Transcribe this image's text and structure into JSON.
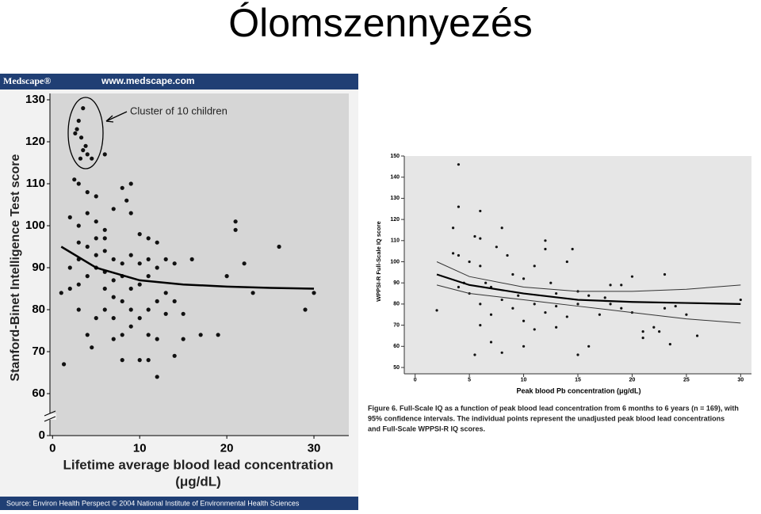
{
  "title": "Ólomszennyezés",
  "chart_data": [
    {
      "type": "scatter",
      "header_logo": "Medscape®",
      "header_url": "www.medscape.com",
      "source": "Source: Environ Health Perspect © 2004 National Institute of Environmental Health Sciences",
      "annotation": "Cluster of 10 children",
      "ylabel": "Stanford-Binet Intelligence Test score",
      "xlabel": [
        "Lifetime average blood lead concentration",
        "(μg/dL)"
      ],
      "xlim": [
        -0.3,
        34
      ],
      "xticks": [
        0,
        10,
        20,
        30
      ],
      "ylim": [
        50,
        130
      ],
      "yticks": [
        0,
        60,
        70,
        80,
        90,
        100,
        110,
        120,
        130
      ],
      "axis_break": true,
      "series": [
        {
          "style": "points",
          "color": "#111111",
          "x": [
            3.5,
            3,
            2.8,
            3.3,
            2.6,
            3.8,
            3.5,
            4,
            3.2,
            4.5,
            6,
            1,
            1.3,
            2.5,
            3,
            4,
            5,
            2,
            3,
            4,
            5,
            6,
            7,
            8,
            9,
            8.5,
            9,
            10,
            11,
            12,
            6,
            7,
            5,
            4,
            3,
            2,
            6,
            7,
            8,
            9,
            10,
            11,
            12,
            13,
            14,
            13,
            12,
            11,
            10,
            9,
            8,
            5,
            4,
            4.5,
            7,
            8,
            10,
            11,
            12,
            14,
            15,
            15,
            16,
            17,
            21,
            21,
            20,
            19,
            22,
            23,
            26,
            29,
            30,
            4,
            5,
            6,
            7,
            8,
            9,
            10,
            11,
            3,
            2,
            3,
            6,
            7,
            13,
            14,
            12,
            11,
            9,
            8,
            6,
            5,
            3
          ],
          "values": [
            128,
            125,
            123,
            121,
            122,
            119,
            118,
            117,
            116,
            116,
            117,
            84,
            67,
            111,
            110,
            108,
            107,
            102,
            100,
            103,
            101,
            99,
            104,
            109,
            110,
            106,
            103,
            98,
            97,
            96,
            94,
            92,
            90,
            88,
            86,
            85,
            85,
            83,
            82,
            80,
            86,
            88,
            90,
            92,
            91,
            84,
            82,
            80,
            78,
            76,
            74,
            78,
            74,
            71,
            73,
            68,
            68,
            68,
            64,
            69,
            73,
            79,
            92,
            74,
            101,
            99,
            88,
            74,
            91,
            84,
            95,
            80,
            84,
            95,
            93,
            89,
            87,
            91,
            93,
            91,
            92,
            92,
            90,
            80,
            80,
            78,
            79,
            82,
            73,
            74,
            85,
            88,
            97,
            97,
            96
          ]
        },
        {
          "style": "line",
          "color": "#000000",
          "width": 2.5,
          "x": [
            1,
            5,
            10,
            15,
            20,
            25,
            30
          ],
          "values": [
            95,
            90,
            87,
            86,
            85.5,
            85.2,
            85
          ]
        }
      ]
    },
    {
      "type": "scatter",
      "ylabel": "WPPSI-R Full-Scale IQ score",
      "xlabel": [
        "Peak blood Pb concentration (μg/dL)"
      ],
      "caption": [
        "Figure 6. Full-Scale IQ as a function of peak blood lead concentration from 6 months to 6 years (n = 169), with",
        "95% confidence intervals. The individual points represent the unadjusted peak blood lead concentrations",
        "and Full-Scale WPPSI-R IQ scores."
      ],
      "xlim": [
        -1,
        31
      ],
      "xticks": [
        0,
        5,
        10,
        15,
        20,
        25,
        30
      ],
      "ylim": [
        47,
        150
      ],
      "yticks": [
        50,
        60,
        70,
        80,
        90,
        100,
        110,
        120,
        130,
        140,
        150
      ],
      "series": [
        {
          "style": "points",
          "color": "#111111",
          "x": [
            2,
            3.5,
            3.5,
            4,
            4,
            4,
            4.5,
            5,
            5.5,
            6,
            6,
            5.5,
            6,
            6.5,
            7,
            7.5,
            8,
            8.5,
            9,
            9.5,
            10,
            10,
            11,
            11,
            12,
            12,
            12.5,
            13,
            13,
            14,
            14,
            14.5,
            15,
            15,
            16,
            17,
            17.5,
            18,
            18,
            19,
            20,
            20,
            21,
            21,
            22,
            22.5,
            23,
            23,
            23.5,
            24,
            25,
            26,
            30,
            6,
            7,
            8,
            9,
            5,
            4,
            6,
            7,
            8,
            10,
            11,
            12,
            13,
            15,
            16,
            19
          ],
          "values": [
            77,
            104,
            116,
            146,
            126,
            103,
            90,
            100,
            112,
            124,
            111,
            56,
            98,
            90,
            88,
            107,
            116,
            103,
            94,
            84,
            60,
            92,
            98,
            80,
            110,
            106,
            90,
            85,
            69,
            74,
            100,
            106,
            80,
            56,
            60,
            75,
            83,
            89,
            80,
            89,
            93,
            76,
            67,
            64,
            69,
            67,
            94,
            78,
            61,
            79,
            75,
            65,
            82,
            80,
            75,
            82,
            78,
            85,
            88,
            70,
            62,
            57,
            72,
            68,
            76,
            79,
            86,
            84,
            78
          ]
        },
        {
          "style": "line",
          "color": "#000000",
          "width": 2.2,
          "x": [
            2,
            5,
            10,
            15,
            20,
            25,
            30
          ],
          "values": [
            94,
            89,
            85,
            82,
            81,
            80.5,
            80
          ]
        },
        {
          "style": "line",
          "color": "#333333",
          "width": 1,
          "x": [
            2,
            5,
            10,
            15,
            20,
            25,
            30
          ],
          "values": [
            100,
            93,
            88,
            86,
            86,
            87,
            89
          ]
        },
        {
          "style": "line",
          "color": "#333333",
          "width": 1,
          "x": [
            2,
            5,
            10,
            15,
            20,
            25,
            30
          ],
          "values": [
            89,
            85,
            82,
            79,
            76,
            73,
            71
          ]
        }
      ]
    }
  ]
}
